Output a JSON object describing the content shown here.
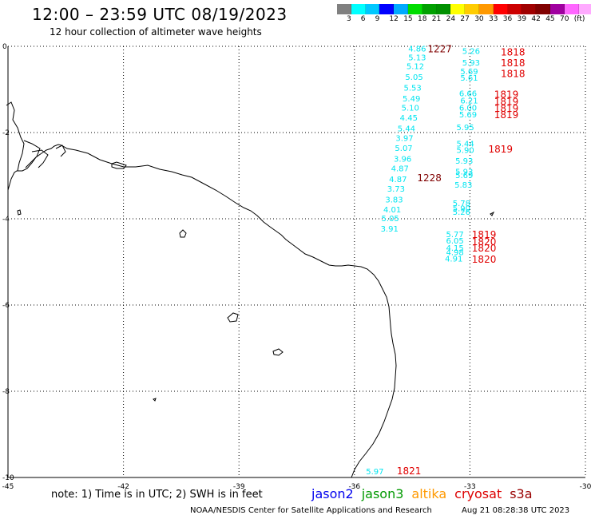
{
  "header": {
    "title": "12:00 – 23:59 UTC 08/19/2023",
    "subtitle": "12 hour collection of altimeter wave heights"
  },
  "legend": {
    "colors": [
      "#808080",
      "#00ffff",
      "#00c8ff",
      "#0000ff",
      "#00aaff",
      "#00dd00",
      "#00a000",
      "#009000",
      "#ffff00",
      "#ffcc00",
      "#ff9900",
      "#ff0000",
      "#cc0000",
      "#a00000",
      "#800000",
      "#a000a0",
      "#ff66ff",
      "#ffaaff",
      "#000000"
    ],
    "labels": [
      "3",
      "6",
      "9",
      "12",
      "15",
      "18",
      "21",
      "24",
      "27",
      "30",
      "33",
      "36",
      "39",
      "42",
      "45",
      "70",
      "(ft)"
    ]
  },
  "axes": {
    "lon_min": -45,
    "lon_max": -30,
    "lat_min": -10,
    "lat_max": 0,
    "x_ticks": [
      "-45",
      "-42",
      "-39",
      "-36",
      "-33",
      "-30"
    ],
    "y_ticks": [
      "0",
      "-2",
      "-4",
      "-6",
      "-8",
      "-10"
    ]
  },
  "colors": {
    "cyan": "#00e5f0",
    "red": "#e00000",
    "darkred": "#800000",
    "coast": "#000000"
  },
  "swh_values": [
    {
      "v": "4.86",
      "lon": -34.6,
      "lat": -0.05
    },
    {
      "v": "5.13",
      "lon": -34.6,
      "lat": -0.25
    },
    {
      "v": "5.12",
      "lon": -34.65,
      "lat": -0.45
    },
    {
      "v": "5.05",
      "lon": -34.68,
      "lat": -0.7
    },
    {
      "v": "5.53",
      "lon": -34.72,
      "lat": -0.95
    },
    {
      "v": "5.49",
      "lon": -34.75,
      "lat": -1.2
    },
    {
      "v": "5.10",
      "lon": -34.78,
      "lat": -1.42
    },
    {
      "v": "4.45",
      "lon": -34.82,
      "lat": -1.65
    },
    {
      "v": "5.44",
      "lon": -34.88,
      "lat": -1.9
    },
    {
      "v": "3.97",
      "lon": -34.93,
      "lat": -2.12
    },
    {
      "v": "5.07",
      "lon": -34.95,
      "lat": -2.35
    },
    {
      "v": "3.96",
      "lon": -34.98,
      "lat": -2.6
    },
    {
      "v": "4.87",
      "lon": -35.05,
      "lat": -2.82
    },
    {
      "v": "4.87",
      "lon": -35.1,
      "lat": -3.07
    },
    {
      "v": "3.73",
      "lon": -35.15,
      "lat": -3.3
    },
    {
      "v": "3.83",
      "lon": -35.2,
      "lat": -3.55
    },
    {
      "v": "4.01",
      "lon": -35.25,
      "lat": -3.78
    },
    {
      "v": "5.05",
      "lon": -35.3,
      "lat": -3.98
    },
    {
      "v": "3.91",
      "lon": -35.32,
      "lat": -4.22
    },
    {
      "v": "5.26",
      "lon": -33.2,
      "lat": -0.1
    },
    {
      "v": "5.93",
      "lon": -33.2,
      "lat": -0.37
    },
    {
      "v": "5.69",
      "lon": -33.25,
      "lat": -0.57
    },
    {
      "v": "5.61",
      "lon": -33.25,
      "lat": -0.72
    },
    {
      "v": "6.66",
      "lon": -33.28,
      "lat": -1.08
    },
    {
      "v": "6.21",
      "lon": -33.25,
      "lat": -1.25
    },
    {
      "v": "6.00",
      "lon": -33.28,
      "lat": -1.42
    },
    {
      "v": "5.69",
      "lon": -33.28,
      "lat": -1.57
    },
    {
      "v": "5.95",
      "lon": -33.35,
      "lat": -1.87
    },
    {
      "v": "5.44",
      "lon": -33.35,
      "lat": -2.25
    },
    {
      "v": "5.90",
      "lon": -33.35,
      "lat": -2.4
    },
    {
      "v": "5.93",
      "lon": -33.38,
      "lat": -2.65
    },
    {
      "v": "5.93",
      "lon": -33.38,
      "lat": -2.9
    },
    {
      "v": "5.69",
      "lon": -33.38,
      "lat": -2.98
    },
    {
      "v": "5.83",
      "lon": -33.4,
      "lat": -3.2
    },
    {
      "v": "5.78",
      "lon": -33.45,
      "lat": -3.63
    },
    {
      "v": "5.90",
      "lon": -33.45,
      "lat": -3.75
    },
    {
      "v": "5.26",
      "lon": -33.45,
      "lat": -3.83
    },
    {
      "v": "5.77",
      "lon": -33.62,
      "lat": -4.35
    },
    {
      "v": "6.05",
      "lon": -33.62,
      "lat": -4.5
    },
    {
      "v": "4.15",
      "lon": -33.62,
      "lat": -4.67
    },
    {
      "v": "4.98",
      "lon": -33.62,
      "lat": -4.77
    },
    {
      "v": "4.91",
      "lon": -33.65,
      "lat": -4.92
    },
    {
      "v": "5.97",
      "lon": -35.7,
      "lat": -9.85
    }
  ],
  "time_labels": [
    {
      "t": "1227",
      "lon": -34.1,
      "lat": -0.05,
      "c": "darkred"
    },
    {
      "t": "1818",
      "lon": -32.2,
      "lat": -0.12,
      "c": "red"
    },
    {
      "t": "1818",
      "lon": -32.2,
      "lat": -0.37,
      "c": "red"
    },
    {
      "t": "1818",
      "lon": -32.2,
      "lat": -0.62,
      "c": "red"
    },
    {
      "t": "1819",
      "lon": -32.37,
      "lat": -1.1,
      "c": "red"
    },
    {
      "t": "1819",
      "lon": -32.37,
      "lat": -1.27,
      "c": "red"
    },
    {
      "t": "1819",
      "lon": -32.37,
      "lat": -1.43,
      "c": "red"
    },
    {
      "t": "1819",
      "lon": -32.37,
      "lat": -1.57,
      "c": "red"
    },
    {
      "t": "1819",
      "lon": -32.52,
      "lat": -2.37,
      "c": "red"
    },
    {
      "t": "1228",
      "lon": -34.37,
      "lat": -3.04,
      "c": "darkred"
    },
    {
      "t": "1819",
      "lon": -32.95,
      "lat": -4.35,
      "c": "red"
    },
    {
      "t": "1820",
      "lon": -32.95,
      "lat": -4.52,
      "c": "red"
    },
    {
      "t": "1820",
      "lon": -32.95,
      "lat": -4.67,
      "c": "red"
    },
    {
      "t": "1820",
      "lon": -32.95,
      "lat": -4.93,
      "c": "red"
    },
    {
      "t": "1821",
      "lon": -34.9,
      "lat": -9.83,
      "c": "red"
    }
  ],
  "note": "note: 1) Time is in UTC; 2) SWH is in feet",
  "satellites": [
    {
      "name": "jason2",
      "color": "#0000ee"
    },
    {
      "name": "jason3",
      "color": "#009900"
    },
    {
      "name": "altika",
      "color": "#ff9900"
    },
    {
      "name": "cryosat",
      "color": "#dd0000"
    },
    {
      "name": "s3a",
      "color": "#990000"
    }
  ],
  "footer": {
    "credit": "NOAA/NESDIS Center for Satellite Applications and Research",
    "generated": "Aug 21 08:28:38 UTC 2023"
  }
}
